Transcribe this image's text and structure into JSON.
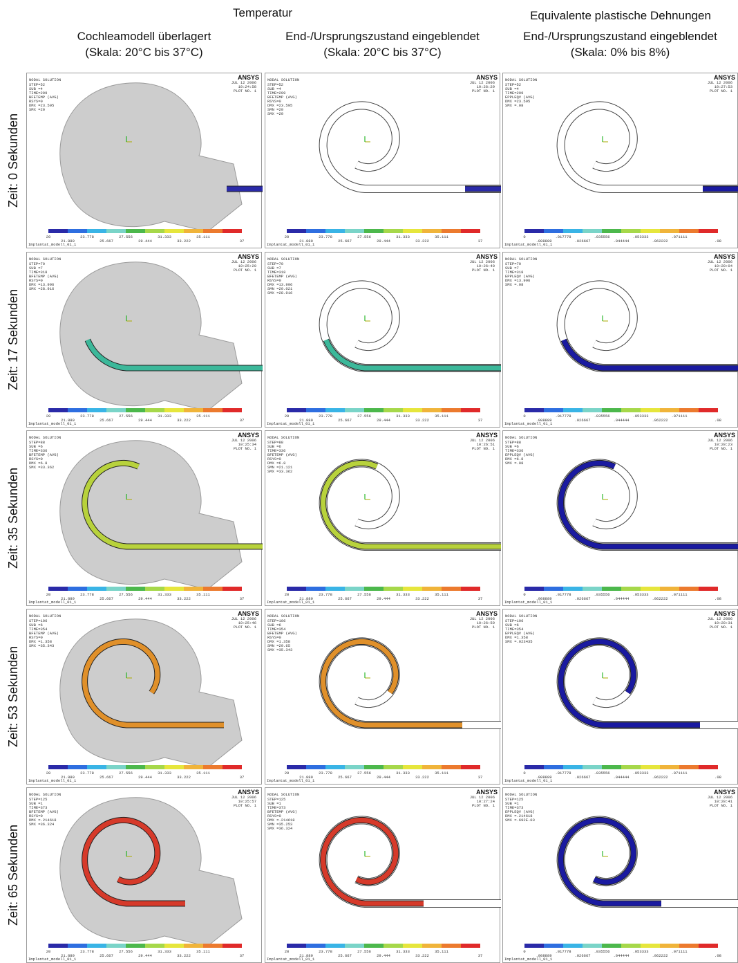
{
  "header": {
    "group_titles": [
      "Temperatur",
      "Equivalente plastische Dehnungen"
    ],
    "columns": [
      {
        "title": "Cochleamodell überlagert",
        "scale": "(Skala: 20°C bis 37°C)"
      },
      {
        "title": "End-/Ursprungszustand eingeblendet",
        "scale": "(Skala: 20°C bis 37°C)"
      },
      {
        "title": "End-/Ursprungszustand eingeblendet",
        "scale": "(Skala: 0% bis 8%)"
      }
    ]
  },
  "panel_common": {
    "title": "NODAL SOLUTION",
    "date": "JUL 12 2006",
    "plot": "PLOT NO. 1",
    "logo": "ANSYS",
    "model": "Implantat_modell_01_1"
  },
  "legends": {
    "temperature": [
      "20",
      "21.889",
      "23.778",
      "25.667",
      "27.556",
      "29.444",
      "31.333",
      "33.222",
      "35.111",
      "37"
    ],
    "strain": [
      "0",
      ".008889",
      ".017778",
      ".026667",
      ".035556",
      ".044444",
      ".053333",
      ".062222",
      ".071111",
      ".08"
    ]
  },
  "rows": [
    {
      "label": "Zeit: 0 Sekunden",
      "panels": [
        {
          "time": "10:24:58",
          "info": [
            "STEP=52",
            "SUB =4",
            "TIME=299",
            "BFETEMP (AVG)",
            "RSYS=0",
            "DMX =23.595",
            "SMX =20"
          ]
        },
        {
          "time": "10:26:29",
          "info": [
            "STEP=52",
            "SUB =4",
            "TIME=299",
            "BFETEMP (AVG)",
            "RSYS=0",
            "DMX =23.595",
            "SMN =20",
            "SMX =20"
          ]
        },
        {
          "time": "10:27:53",
          "info": [
            "STEP=52",
            "SUB =4",
            "TIME=299",
            "EPPLEQV (AVG)",
            "DMX =23.595",
            "SMX =.08"
          ]
        }
      ]
    },
    {
      "label": "Zeit: 17 Sekunden",
      "panels": [
        {
          "time": "10:25:20",
          "info": [
            "STEP=70",
            "SUB =7",
            "TIME=318",
            "BFETEMP (AVG)",
            "RSYS=0",
            "DMX =13.996",
            "SMX =28.916"
          ]
        },
        {
          "time": "10:26:40",
          "info": [
            "STEP=70",
            "SUB =7",
            "TIME=318",
            "BFETEMP (AVG)",
            "RSYS=0",
            "DMX =13.996",
            "SMN =20.021",
            "SMX =28.916"
          ]
        },
        {
          "time": "10:28:04",
          "info": [
            "STEP=70",
            "SUB =7",
            "TIME=318",
            "EPPLEQV (AVG)",
            "DMX =13.996",
            "SMX =.08"
          ]
        }
      ]
    },
    {
      "label": "Zeit: 35 Sekunden",
      "panels": [
        {
          "time": "10:25:34",
          "info": [
            "STEP=88",
            "SUB =6",
            "TIME=336",
            "BFETEMP (AVG)",
            "RSYS=0",
            "DMX =6.8",
            "SMX =33.362"
          ]
        },
        {
          "time": "10:26:51",
          "info": [
            "STEP=88",
            "SUB =6",
            "TIME=336",
            "BFETEMP (AVG)",
            "RSYS=0",
            "DMX =6.8",
            "SMN =21.121",
            "SMX =33.362"
          ]
        },
        {
          "time": "10:28:23",
          "info": [
            "STEP=88",
            "SUB =6",
            "TIME=336",
            "EPPLEQV (AVG)",
            "DMX =6.8",
            "SMX =.08"
          ]
        }
      ]
    },
    {
      "label": "Zeit: 53 Sekunden",
      "panels": [
        {
          "time": "10:25:46",
          "info": [
            "STEP=106",
            "SUB =6",
            "TIME=354",
            "BFETEMP (AVG)",
            "RSYS=0",
            "DMX =1.358",
            "SMX =35.343"
          ]
        },
        {
          "time": "10:26:59",
          "info": [
            "STEP=106",
            "SUB =6",
            "TIME=354",
            "BFETEMP (AVG)",
            "RSYS=0",
            "DMX =1.358",
            "SMN =29.65",
            "SMX =35.343"
          ]
        },
        {
          "time": "10:28:31",
          "info": [
            "STEP=106",
            "SUB =6",
            "TIME=354",
            "EPPLEQV (AVG)",
            "DMX =1.358",
            "SMX =.023435"
          ]
        }
      ]
    },
    {
      "label": "Zeit: 65 Sekunden",
      "panels": [
        {
          "time": "10:25:57",
          "info": [
            "STEP=125",
            "SUB =1",
            "TIME=373",
            "BFETEMP (AVG)",
            "RSYS=0",
            "DMX =.214618",
            "SMX =36.324"
          ]
        },
        {
          "time": "10:27:24",
          "info": [
            "STEP=125",
            "SUB =1",
            "TIME=373",
            "BFETEMP (AVG)",
            "RSYS=0",
            "DMX =.214618",
            "SMN =35.253",
            "SMX =36.324"
          ]
        },
        {
          "time": "10:28:41",
          "info": [
            "STEP=125",
            "SUB =1",
            "TIME=373",
            "EPPLEQV (AVG)",
            "DMX =.214618",
            "SMX =.692E-03"
          ]
        }
      ]
    }
  ]
}
